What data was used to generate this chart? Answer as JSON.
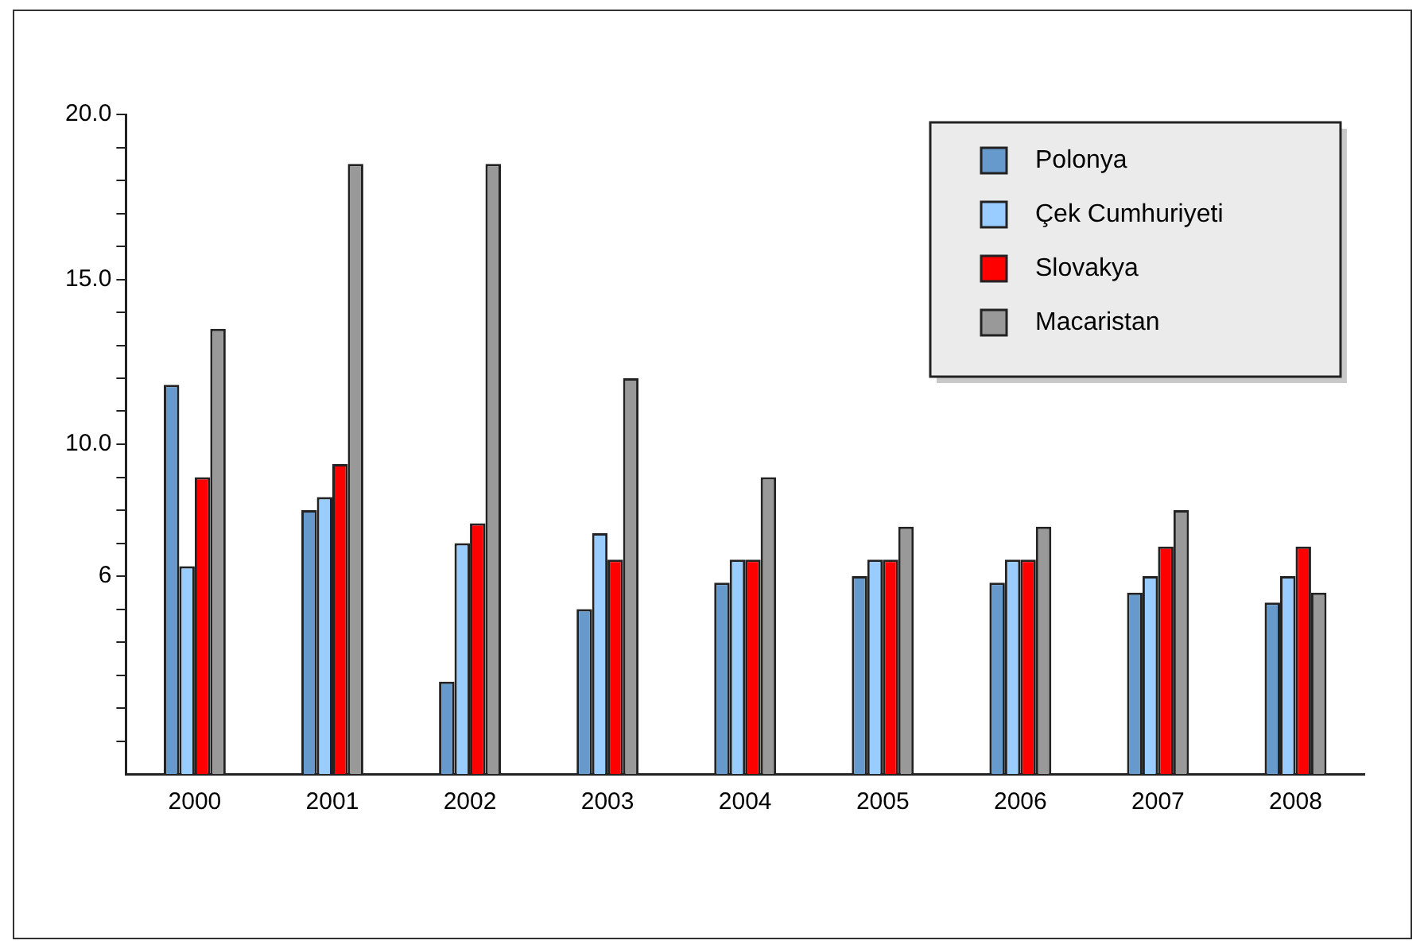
{
  "chart_data": {
    "type": "bar",
    "categories": [
      "2000",
      "2001",
      "2002",
      "2003",
      "2004",
      "2005",
      "2006",
      "2007",
      "2008"
    ],
    "series": [
      {
        "name": "Polonya",
        "color": "#6699cc",
        "values": [
          11.8,
          8.0,
          2.8,
          5.0,
          5.8,
          6.0,
          5.8,
          5.5,
          5.2
        ]
      },
      {
        "name": "Çek Cumhuriyeti",
        "color": "#99ccff",
        "values": [
          6.3,
          8.4,
          7.0,
          7.3,
          6.5,
          6.5,
          6.5,
          6.0,
          6.0
        ]
      },
      {
        "name": "Slovakya",
        "color": "#ff0000",
        "values": [
          9.0,
          9.4,
          7.6,
          6.5,
          6.5,
          6.5,
          6.5,
          6.9,
          6.9
        ]
      },
      {
        "name": "Macaristan",
        "color": "#999999",
        "values": [
          13.5,
          18.5,
          18.5,
          12.0,
          9.0,
          7.5,
          7.5,
          8.0,
          5.5
        ]
      }
    ],
    "ylim": [
      0,
      20
    ],
    "yticks": [
      {
        "value": 1,
        "label": null
      },
      {
        "value": 2,
        "label": null
      },
      {
        "value": 3,
        "label": null
      },
      {
        "value": 4,
        "label": null
      },
      {
        "value": 5,
        "label": null
      },
      6,
      {
        "value": 7,
        "label": null
      },
      {
        "value": 8,
        "label": null
      },
      {
        "value": 9,
        "label": null
      },
      {
        "value": 10,
        "label": "10.0"
      },
      {
        "value": 11,
        "label": null
      },
      {
        "value": 12,
        "label": null
      },
      {
        "value": 13,
        "label": null
      },
      {
        "value": 14,
        "label": null
      },
      {
        "value": 15,
        "label": "15.0"
      },
      {
        "value": 16,
        "label": null
      },
      {
        "value": 17,
        "label": null
      },
      {
        "value": 18,
        "label": null
      },
      {
        "value": 19,
        "label": null
      },
      {
        "value": 20,
        "label": "20.0"
      }
    ],
    "grid": false,
    "legend": "top right"
  }
}
